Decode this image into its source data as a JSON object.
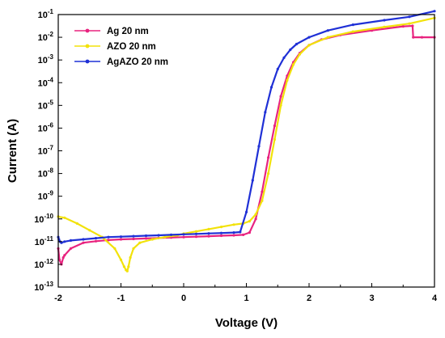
{
  "chart_data": {
    "type": "line",
    "xlabel": "Voltage (V)",
    "ylabel": "Current (A)",
    "xlim": [
      -2,
      4
    ],
    "ylim_log10": [
      -13,
      -1
    ],
    "y_scale": "log",
    "x_ticks": [
      -2,
      -1,
      0,
      1,
      2,
      3,
      4
    ],
    "y_ticks_exponent": [
      -13,
      -12,
      -11,
      -10,
      -9,
      -8,
      -7,
      -6,
      -5,
      -4,
      -3,
      -2,
      -1
    ],
    "grid": false,
    "legend_position": "top-left",
    "series": [
      {
        "name": "Ag 20 nm",
        "color": "#e8237f",
        "marker": "circle",
        "x": [
          -2.0,
          -1.98,
          -1.95,
          -1.92,
          -1.9,
          -1.8,
          -1.6,
          -1.4,
          -1.2,
          -1.0,
          -0.8,
          -0.6,
          -0.4,
          -0.2,
          0.0,
          0.2,
          0.4,
          0.6,
          0.8,
          0.95,
          1.05,
          1.15,
          1.25,
          1.35,
          1.45,
          1.55,
          1.65,
          1.75,
          1.85,
          2.0,
          2.2,
          2.5,
          3.0,
          3.5,
          3.65,
          3.66,
          3.8,
          4.0
        ],
        "log10_y": [
          -11.3,
          -11.8,
          -12.0,
          -11.7,
          -11.6,
          -11.3,
          -11.05,
          -10.98,
          -10.93,
          -10.9,
          -10.88,
          -10.86,
          -10.84,
          -10.82,
          -10.8,
          -10.78,
          -10.76,
          -10.74,
          -10.72,
          -10.7,
          -10.6,
          -10.0,
          -8.8,
          -7.3,
          -5.9,
          -4.6,
          -3.7,
          -3.1,
          -2.7,
          -2.35,
          -2.1,
          -1.9,
          -1.7,
          -1.52,
          -1.5,
          -2.0,
          -2.0,
          -2.0
        ]
      },
      {
        "name": "AZO 20 nm",
        "color": "#f2e20a",
        "marker": "circle",
        "x": [
          -2.0,
          -1.9,
          -1.7,
          -1.5,
          -1.3,
          -1.1,
          -1.0,
          -0.95,
          -0.92,
          -0.9,
          -0.88,
          -0.85,
          -0.8,
          -0.7,
          -0.5,
          -0.3,
          -0.1,
          0.0,
          0.2,
          0.4,
          0.6,
          0.8,
          0.95,
          1.05,
          1.15,
          1.25,
          1.35,
          1.45,
          1.55,
          1.65,
          1.75,
          1.85,
          2.0,
          2.3,
          2.7,
          3.2,
          3.6,
          4.0
        ],
        "log10_y": [
          -9.9,
          -9.95,
          -10.2,
          -10.5,
          -10.8,
          -11.3,
          -11.8,
          -12.1,
          -12.25,
          -12.3,
          -12.1,
          -11.7,
          -11.3,
          -11.05,
          -10.9,
          -10.8,
          -10.72,
          -10.65,
          -10.55,
          -10.45,
          -10.35,
          -10.25,
          -10.2,
          -10.1,
          -9.8,
          -9.2,
          -8.0,
          -6.5,
          -5.0,
          -3.9,
          -3.2,
          -2.75,
          -2.35,
          -2.0,
          -1.75,
          -1.55,
          -1.4,
          -1.15
        ]
      },
      {
        "name": "AgAZO 20 nm",
        "color": "#1f30d6",
        "marker": "circle",
        "x": [
          -2.0,
          -1.99,
          -1.97,
          -1.95,
          -1.9,
          -1.8,
          -1.6,
          -1.4,
          -1.2,
          -1.0,
          -0.8,
          -0.6,
          -0.4,
          -0.2,
          0.0,
          0.2,
          0.4,
          0.6,
          0.8,
          0.9,
          1.0,
          1.1,
          1.2,
          1.3,
          1.4,
          1.5,
          1.6,
          1.7,
          1.8,
          2.0,
          2.3,
          2.7,
          3.2,
          3.6,
          4.0
        ],
        "log10_y": [
          -10.8,
          -10.9,
          -11.0,
          -11.05,
          -11.0,
          -10.95,
          -10.9,
          -10.85,
          -10.8,
          -10.78,
          -10.76,
          -10.74,
          -10.72,
          -10.7,
          -10.68,
          -10.66,
          -10.64,
          -10.62,
          -10.6,
          -10.58,
          -9.7,
          -8.3,
          -6.8,
          -5.3,
          -4.2,
          -3.4,
          -2.9,
          -2.55,
          -2.3,
          -2.0,
          -1.7,
          -1.45,
          -1.25,
          -1.1,
          -0.85
        ]
      }
    ]
  }
}
